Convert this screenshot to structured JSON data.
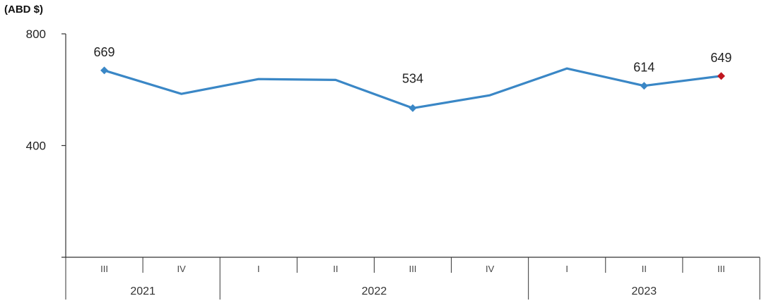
{
  "chart_data": {
    "type": "line",
    "unit_label": "(ABD $)",
    "ylim": [
      0,
      800
    ],
    "y_ticks": [
      400,
      800
    ],
    "grid": false,
    "categories": [
      "III",
      "IV",
      "I",
      "II",
      "III",
      "IV",
      "I",
      "II",
      "III"
    ],
    "year_groups": [
      {
        "label": "2021",
        "span": 2
      },
      {
        "label": "2022",
        "span": 4
      },
      {
        "label": "2023",
        "span": 3
      }
    ],
    "series": [
      {
        "values": [
          669,
          585,
          638,
          635,
          534,
          580,
          676,
          614,
          649
        ]
      }
    ],
    "data_labels": [
      {
        "index": 0,
        "text": "669"
      },
      {
        "index": 4,
        "text": "534"
      },
      {
        "index": 7,
        "text": "614"
      },
      {
        "index": 8,
        "text": "649"
      }
    ],
    "colors": {
      "line": "#3a87c6",
      "last_marker": "#c0161f",
      "axis": "#333333"
    }
  }
}
